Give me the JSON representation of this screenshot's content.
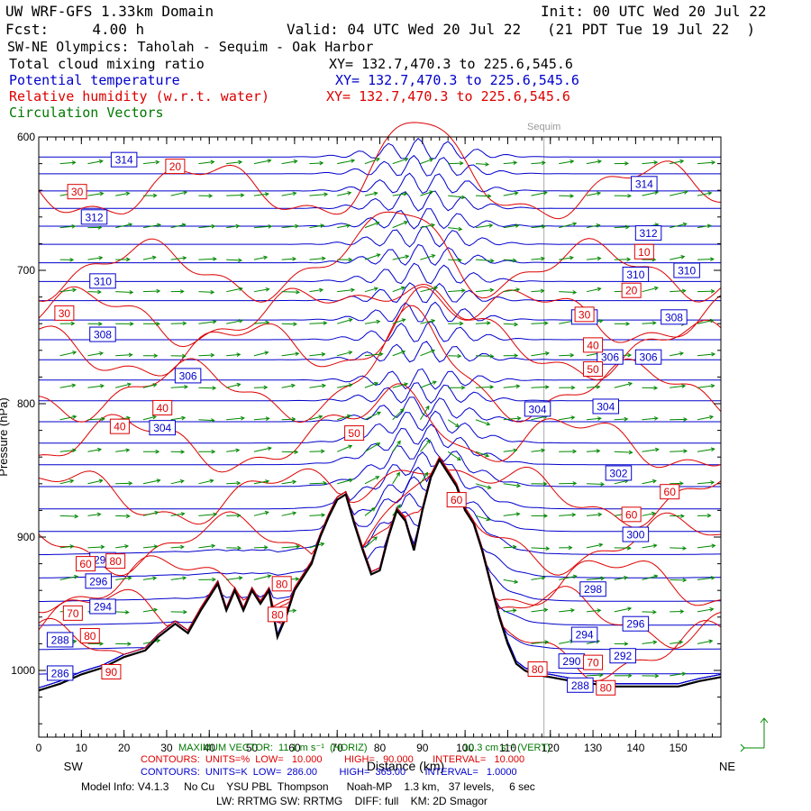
{
  "header": {
    "model": "UW WRF-GFS 1.33km Domain",
    "init": "Init: 00 UTC Wed 20 Jul 22",
    "fcst": "Fcst:     4.00 h",
    "valid": "Valid: 04 UTC Wed 20 Jul 22   (21 PDT Tue 19 Jul 22  )",
    "section": "SW-NE Olympics: Taholah - Sequim - Oak Harbor",
    "fields": [
      {
        "label": "Total cloud mixing ratio",
        "xy": "XY= 132.7,470.3 to 225.6,545.6",
        "color": "#000000"
      },
      {
        "label": "Potential temperature",
        "xy": "XY= 132.7,470.3 to 225.6,545.6",
        "color": "#0000cc"
      },
      {
        "label": "Relative humidity (w.r.t. water)",
        "xy": "XY= 132.7,470.3 to 225.6,545.6",
        "color": "#dd0000"
      },
      {
        "label": "Circulation Vectors",
        "xy": "",
        "color": "#007700"
      }
    ]
  },
  "chart_data": {
    "type": "cross-section",
    "x_range": [
      0,
      160
    ],
    "y_range_hpa": [
      600,
      1050
    ],
    "x_ticks": [
      "0",
      "10",
      "20",
      "30",
      "40",
      "50",
      "60",
      "70",
      "80",
      "90",
      "100",
      "110",
      "120",
      "130",
      "140",
      "150"
    ],
    "y_ticks": [
      "600",
      "700",
      "800",
      "900",
      "1000"
    ],
    "left_end": "SW",
    "right_end": "NE",
    "xlabel": "Distance (km)",
    "ylabel": "Pressure (hPa)",
    "marker": {
      "label": "Sequim",
      "x_km": 118.5
    },
    "terrain": [
      [
        0,
        1015
      ],
      [
        5,
        1010
      ],
      [
        10,
        1003
      ],
      [
        15,
        998
      ],
      [
        20,
        990
      ],
      [
        25,
        985
      ],
      [
        28,
        975
      ],
      [
        32,
        965
      ],
      [
        35,
        972
      ],
      [
        38,
        955
      ],
      [
        40,
        945
      ],
      [
        42,
        935
      ],
      [
        44,
        955
      ],
      [
        46,
        940
      ],
      [
        48,
        955
      ],
      [
        50,
        940
      ],
      [
        52,
        950
      ],
      [
        54,
        940
      ],
      [
        56,
        975
      ],
      [
        58,
        960
      ],
      [
        60,
        940
      ],
      [
        62,
        930
      ],
      [
        64,
        920
      ],
      [
        66,
        900
      ],
      [
        68,
        885
      ],
      [
        70,
        872
      ],
      [
        72,
        868
      ],
      [
        74,
        890
      ],
      [
        76,
        910
      ],
      [
        78,
        928
      ],
      [
        80,
        925
      ],
      [
        82,
        900
      ],
      [
        84,
        880
      ],
      [
        86,
        888
      ],
      [
        88,
        910
      ],
      [
        90,
        880
      ],
      [
        92,
        855
      ],
      [
        94,
        842
      ],
      [
        96,
        852
      ],
      [
        98,
        862
      ],
      [
        100,
        880
      ],
      [
        102,
        890
      ],
      [
        104,
        910
      ],
      [
        106,
        935
      ],
      [
        108,
        960
      ],
      [
        110,
        980
      ],
      [
        112,
        995
      ],
      [
        114,
        1000
      ],
      [
        116,
        1003
      ],
      [
        120,
        1005
      ],
      [
        125,
        1008
      ],
      [
        130,
        1010
      ],
      [
        135,
        1012
      ],
      [
        140,
        1012
      ],
      [
        145,
        1012
      ],
      [
        150,
        1012
      ],
      [
        155,
        1008
      ],
      [
        160,
        1005
      ]
    ],
    "theta_contours": {
      "units": "K",
      "low": 286.0,
      "high": 365.0,
      "interval": 1.0,
      "labels": [
        {
          "text": "314",
          "x": 20,
          "p": 617
        },
        {
          "text": "314",
          "x": 142,
          "p": 635
        },
        {
          "text": "312",
          "x": 13,
          "p": 660
        },
        {
          "text": "312",
          "x": 143,
          "p": 672
        },
        {
          "text": "310",
          "x": 15,
          "p": 708
        },
        {
          "text": "310",
          "x": 140,
          "p": 703
        },
        {
          "text": "310",
          "x": 152,
          "p": 700
        },
        {
          "text": "308",
          "x": 15,
          "p": 748
        },
        {
          "text": "308",
          "x": 128,
          "p": 735
        },
        {
          "text": "308",
          "x": 149,
          "p": 735
        },
        {
          "text": "306",
          "x": 35,
          "p": 779
        },
        {
          "text": "306",
          "x": 134,
          "p": 765
        },
        {
          "text": "306",
          "x": 143,
          "p": 765
        },
        {
          "text": "304",
          "x": 29,
          "p": 818
        },
        {
          "text": "304",
          "x": 117,
          "p": 804
        },
        {
          "text": "304",
          "x": 133,
          "p": 802
        },
        {
          "text": "302",
          "x": 136,
          "p": 852
        },
        {
          "text": "300",
          "x": 140,
          "p": 898
        },
        {
          "text": "298",
          "x": 130,
          "p": 939
        },
        {
          "text": "298",
          "x": 15,
          "p": 917
        },
        {
          "text": "296",
          "x": 14,
          "p": 933
        },
        {
          "text": "296",
          "x": 140,
          "p": 965
        },
        {
          "text": "294",
          "x": 15,
          "p": 952
        },
        {
          "text": "294",
          "x": 128,
          "p": 973
        },
        {
          "text": "292",
          "x": 137,
          "p": 989
        },
        {
          "text": "290",
          "x": 125,
          "p": 993
        },
        {
          "text": "288",
          "x": 5,
          "p": 977
        },
        {
          "text": "288",
          "x": 127,
          "p": 1011
        },
        {
          "text": "286",
          "x": 5,
          "p": 1002
        }
      ]
    },
    "rh_contours": {
      "units": "%",
      "low": 10.0,
      "high": 90.0,
      "interval": 10.0,
      "labels": [
        {
          "text": "20",
          "x": 32,
          "p": 622
        },
        {
          "text": "30",
          "x": 9,
          "p": 641
        },
        {
          "text": "10",
          "x": 142,
          "p": 686
        },
        {
          "text": "20",
          "x": 139,
          "p": 715
        },
        {
          "text": "30",
          "x": 6,
          "p": 732
        },
        {
          "text": "30",
          "x": 128,
          "p": 733
        },
        {
          "text": "40",
          "x": 130,
          "p": 756
        },
        {
          "text": "50",
          "x": 130,
          "p": 774
        },
        {
          "text": "40",
          "x": 29,
          "p": 803
        },
        {
          "text": "40",
          "x": 19,
          "p": 817
        },
        {
          "text": "50",
          "x": 74,
          "p": 822
        },
        {
          "text": "60",
          "x": 98,
          "p": 872
        },
        {
          "text": "60",
          "x": 148,
          "p": 866
        },
        {
          "text": "60",
          "x": 139,
          "p": 883
        },
        {
          "text": "60",
          "x": 11,
          "p": 920
        },
        {
          "text": "80",
          "x": 18,
          "p": 918
        },
        {
          "text": "80",
          "x": 57,
          "p": 935
        },
        {
          "text": "80",
          "x": 56,
          "p": 958
        },
        {
          "text": "70",
          "x": 8,
          "p": 957
        },
        {
          "text": "80",
          "x": 12,
          "p": 974
        },
        {
          "text": "70",
          "x": 130,
          "p": 994
        },
        {
          "text": "90",
          "x": 17,
          "p": 1001
        },
        {
          "text": "80",
          "x": 117,
          "p": 999
        },
        {
          "text": "80",
          "x": 133,
          "p": 1013
        }
      ]
    },
    "vectors_note": "MAXIMUM VECTOR: 11.1 m s-1 (HORIZ)  10.3 cm s-1 (VERT)"
  },
  "footer": {
    "max_vector": "MAXIMUM VECTOR:  11.1 m s⁻¹  (HORIZ)",
    "max_vector_vert": "10.3 cm s⁻¹ (VERT)",
    "rh_line": "CONTOURS:  UNITS=%  LOW=   10.000        HIGH=   90.000       INTERVAL=   10.000",
    "theta_line": "CONTOURS:  UNITS=K  LOW=  286.00        HIGH=  365.00       INTERVAL=   1.0000",
    "model_info": "Model Info: V4.1.3     No Cu    YSU PBL  Thompson      Noah-MP    1.3 km,   37 levels,     6 sec",
    "physics": "LW: RRTMG SW: RRTMG    DIFF: full    KM: 2D Smagor"
  }
}
